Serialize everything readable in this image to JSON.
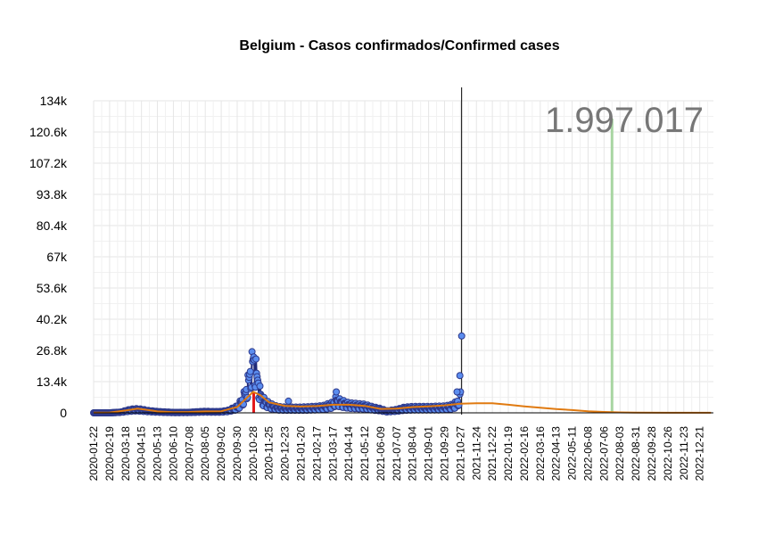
{
  "chart_data": {
    "type": "scatter",
    "title": "Belgium - Casos confirmados/Confirmed cases",
    "xlabel": "",
    "ylabel": "",
    "total_label": "1.997.017",
    "ylim": [
      0,
      134000
    ],
    "yticks": [
      0,
      13400,
      26800,
      40200,
      53600,
      67000,
      80400,
      93800,
      107200,
      120600,
      134000
    ],
    "ytick_labels": [
      "0",
      "13.4k",
      "26.8k",
      "40.2k",
      "53.6k",
      "67k",
      "80.4k",
      "93.8k",
      "107.2k",
      "120.6k",
      "134k"
    ],
    "x_start": "2020-01-22",
    "x_end": "2023-01-14",
    "xtick_labels": [
      "2020-01-22",
      "2020-02-19",
      "2020-03-18",
      "2020-04-15",
      "2020-05-13",
      "2020-06-10",
      "2020-07-08",
      "2020-08-05",
      "2020-09-02",
      "2020-09-30",
      "2020-10-28",
      "2020-11-25",
      "2020-12-23",
      "2021-01-20",
      "2021-02-17",
      "2021-03-17",
      "2021-04-14",
      "2021-05-12",
      "2021-06-09",
      "2021-07-07",
      "2021-08-04",
      "2021-09-01",
      "2021-09-29",
      "2021-10-27",
      "2021-11-24",
      "2021-12-22",
      "2022-01-19",
      "2022-02-16",
      "2022-03-16",
      "2022-04-13",
      "2022-05-11",
      "2022-06-08",
      "2022-07-06",
      "2022-08-03",
      "2022-08-31",
      "2022-09-28",
      "2022-10-26",
      "2022-11-23",
      "2022-12-21"
    ],
    "grid": true,
    "today": "2021-10-29",
    "peak_marker_date": "2020-10-29",
    "forecast_marker_date": "2022-07-20",
    "observed_series": [
      [
        "2020-01-22",
        0
      ],
      [
        "2020-02-19",
        0
      ],
      [
        "2020-03-10",
        300
      ],
      [
        "2020-03-25",
        1200
      ],
      [
        "2020-04-05",
        1500
      ],
      [
        "2020-04-15",
        1300
      ],
      [
        "2020-04-25",
        900
      ],
      [
        "2020-05-13",
        500
      ],
      [
        "2020-06-10",
        150
      ],
      [
        "2020-07-08",
        200
      ],
      [
        "2020-07-25",
        450
      ],
      [
        "2020-08-05",
        550
      ],
      [
        "2020-08-20",
        450
      ],
      [
        "2020-09-02",
        500
      ],
      [
        "2020-09-15",
        1000
      ],
      [
        "2020-09-30",
        2500
      ],
      [
        "2020-10-08",
        5000
      ],
      [
        "2020-10-15",
        9000
      ],
      [
        "2020-10-20",
        14000
      ],
      [
        "2020-10-24",
        19000
      ],
      [
        "2020-10-27",
        22000
      ],
      [
        "2020-10-29",
        24000
      ],
      [
        "2020-11-01",
        20000
      ],
      [
        "2020-11-05",
        14000
      ],
      [
        "2020-11-10",
        8000
      ],
      [
        "2020-11-15",
        5500
      ],
      [
        "2020-11-25",
        3500
      ],
      [
        "2020-12-10",
        2200
      ],
      [
        "2020-12-23",
        2000
      ],
      [
        "2021-01-20",
        2000
      ],
      [
        "2021-02-17",
        2300
      ],
      [
        "2021-03-01",
        2600
      ],
      [
        "2021-03-17",
        3800
      ],
      [
        "2021-03-22",
        5500
      ],
      [
        "2021-04-01",
        4500
      ],
      [
        "2021-04-14",
        3500
      ],
      [
        "2021-05-12",
        3000
      ],
      [
        "2021-05-25",
        2200
      ],
      [
        "2021-06-09",
        1500
      ],
      [
        "2021-06-20",
        700
      ],
      [
        "2021-07-07",
        1200
      ],
      [
        "2021-07-20",
        2000
      ],
      [
        "2021-08-04",
        2200
      ],
      [
        "2021-09-01",
        2200
      ],
      [
        "2021-09-29",
        2400
      ],
      [
        "2021-10-10",
        2800
      ],
      [
        "2021-10-20",
        4000
      ],
      [
        "2021-10-24",
        6000
      ],
      [
        "2021-10-27",
        9000
      ]
    ],
    "outliers": [
      [
        "2020-12-29",
        5000
      ],
      [
        "2021-03-23",
        9000
      ],
      [
        "2021-10-21",
        9000
      ],
      [
        "2021-10-26",
        16000
      ],
      [
        "2021-10-29",
        33000
      ]
    ],
    "smooth_series": [
      [
        "2020-01-22",
        100
      ],
      [
        "2020-02-19",
        150
      ],
      [
        "2020-03-18",
        1000
      ],
      [
        "2020-04-08",
        1800
      ],
      [
        "2020-04-20",
        1400
      ],
      [
        "2020-05-13",
        600
      ],
      [
        "2020-06-10",
        300
      ],
      [
        "2020-07-08",
        400
      ],
      [
        "2020-08-05",
        600
      ],
      [
        "2020-09-02",
        700
      ],
      [
        "2020-09-30",
        2500
      ],
      [
        "2020-10-15",
        6000
      ],
      [
        "2020-10-28",
        9000
      ],
      [
        "2020-11-10",
        7500
      ],
      [
        "2020-11-25",
        4500
      ],
      [
        "2020-12-23",
        3000
      ],
      [
        "2021-01-20",
        2700
      ],
      [
        "2021-02-17",
        2900
      ],
      [
        "2021-03-17",
        3500
      ],
      [
        "2021-04-14",
        3500
      ],
      [
        "2021-05-12",
        3000
      ],
      [
        "2021-06-09",
        1700
      ],
      [
        "2021-07-07",
        1800
      ],
      [
        "2021-08-04",
        2500
      ],
      [
        "2021-09-01",
        2800
      ],
      [
        "2021-09-29",
        3200
      ],
      [
        "2021-10-27",
        3900
      ],
      [
        "2021-11-24",
        4100
      ],
      [
        "2021-12-22",
        4100
      ],
      [
        "2022-01-19",
        3500
      ],
      [
        "2022-02-16",
        2800
      ],
      [
        "2022-03-16",
        2200
      ],
      [
        "2022-04-13",
        1600
      ],
      [
        "2022-05-11",
        1200
      ],
      [
        "2022-06-08",
        700
      ],
      [
        "2022-07-06",
        400
      ],
      [
        "2022-08-03",
        200
      ],
      [
        "2022-08-31",
        100
      ],
      [
        "2022-10-26",
        50
      ],
      [
        "2022-12-21",
        30
      ],
      [
        "2023-01-10",
        20
      ]
    ]
  },
  "colors": {
    "point_fill": "#5b8def",
    "point_stroke": "#2e3a8c",
    "observed_line": "#1f2a7a",
    "smooth_line": "#e07a10",
    "peak_marker": "#e31a1c",
    "forecast_marker": "#a8d5a2",
    "today_line": "#000000",
    "grid": "#e6e6e6",
    "total_text": "#777777"
  }
}
